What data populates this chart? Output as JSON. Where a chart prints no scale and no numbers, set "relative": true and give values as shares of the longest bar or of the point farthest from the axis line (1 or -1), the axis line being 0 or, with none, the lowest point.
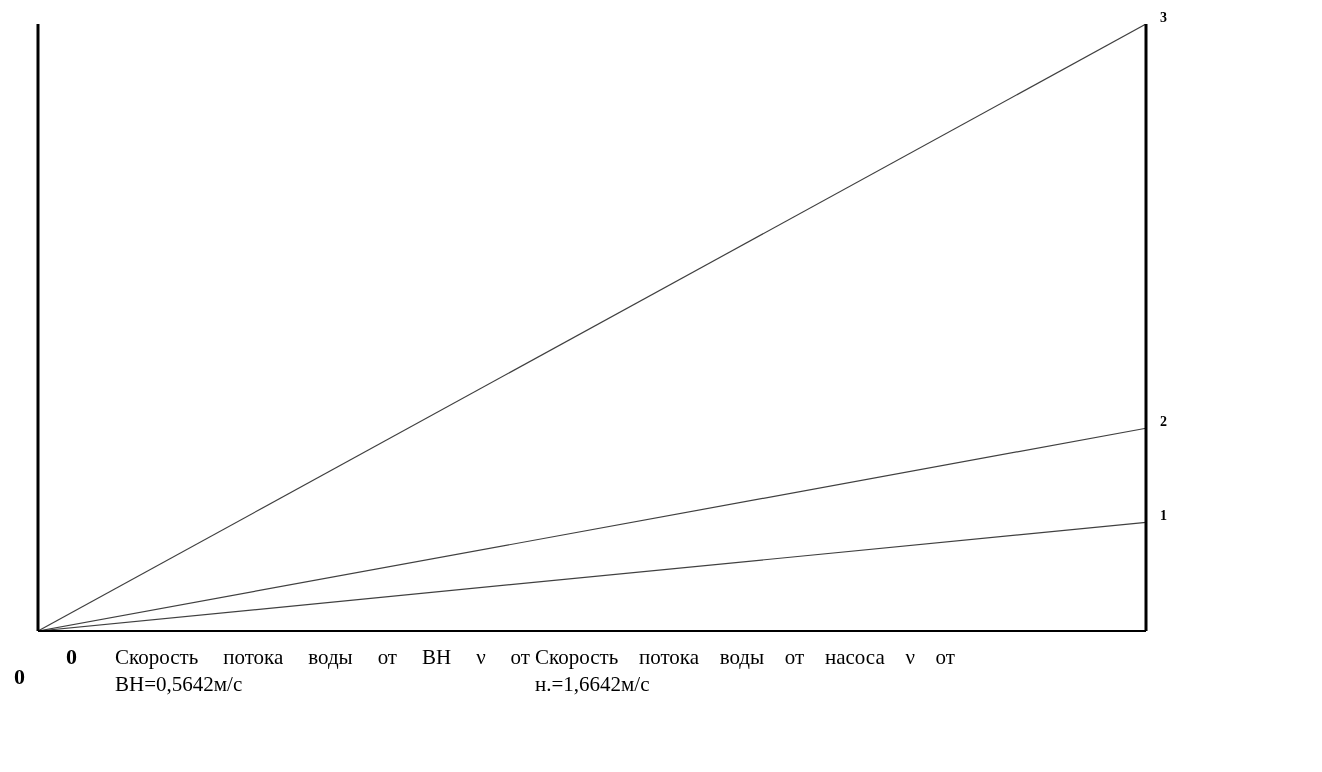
{
  "chart_data": {
    "type": "line",
    "relative": true,
    "categories": [
      null,
      null
    ],
    "series": [
      {
        "name": "1",
        "color": "#404040",
        "values": [
          0,
          0.179
        ]
      },
      {
        "name": "2",
        "color": "#404040",
        "values": [
          0,
          0.334
        ]
      },
      {
        "name": "3",
        "color": "#404040",
        "values": [
          0,
          1
        ]
      }
    ],
    "annotations": [
      "0",
      "0",
      "Скорость потока воды от ВН ν от ВН=0,5642м/с",
      "Скорость потока воды от насоса ν от н.=1,6642м/с"
    ],
    "grid": false,
    "legend": false,
    "marker": "none",
    "line_style": "solid"
  }
}
